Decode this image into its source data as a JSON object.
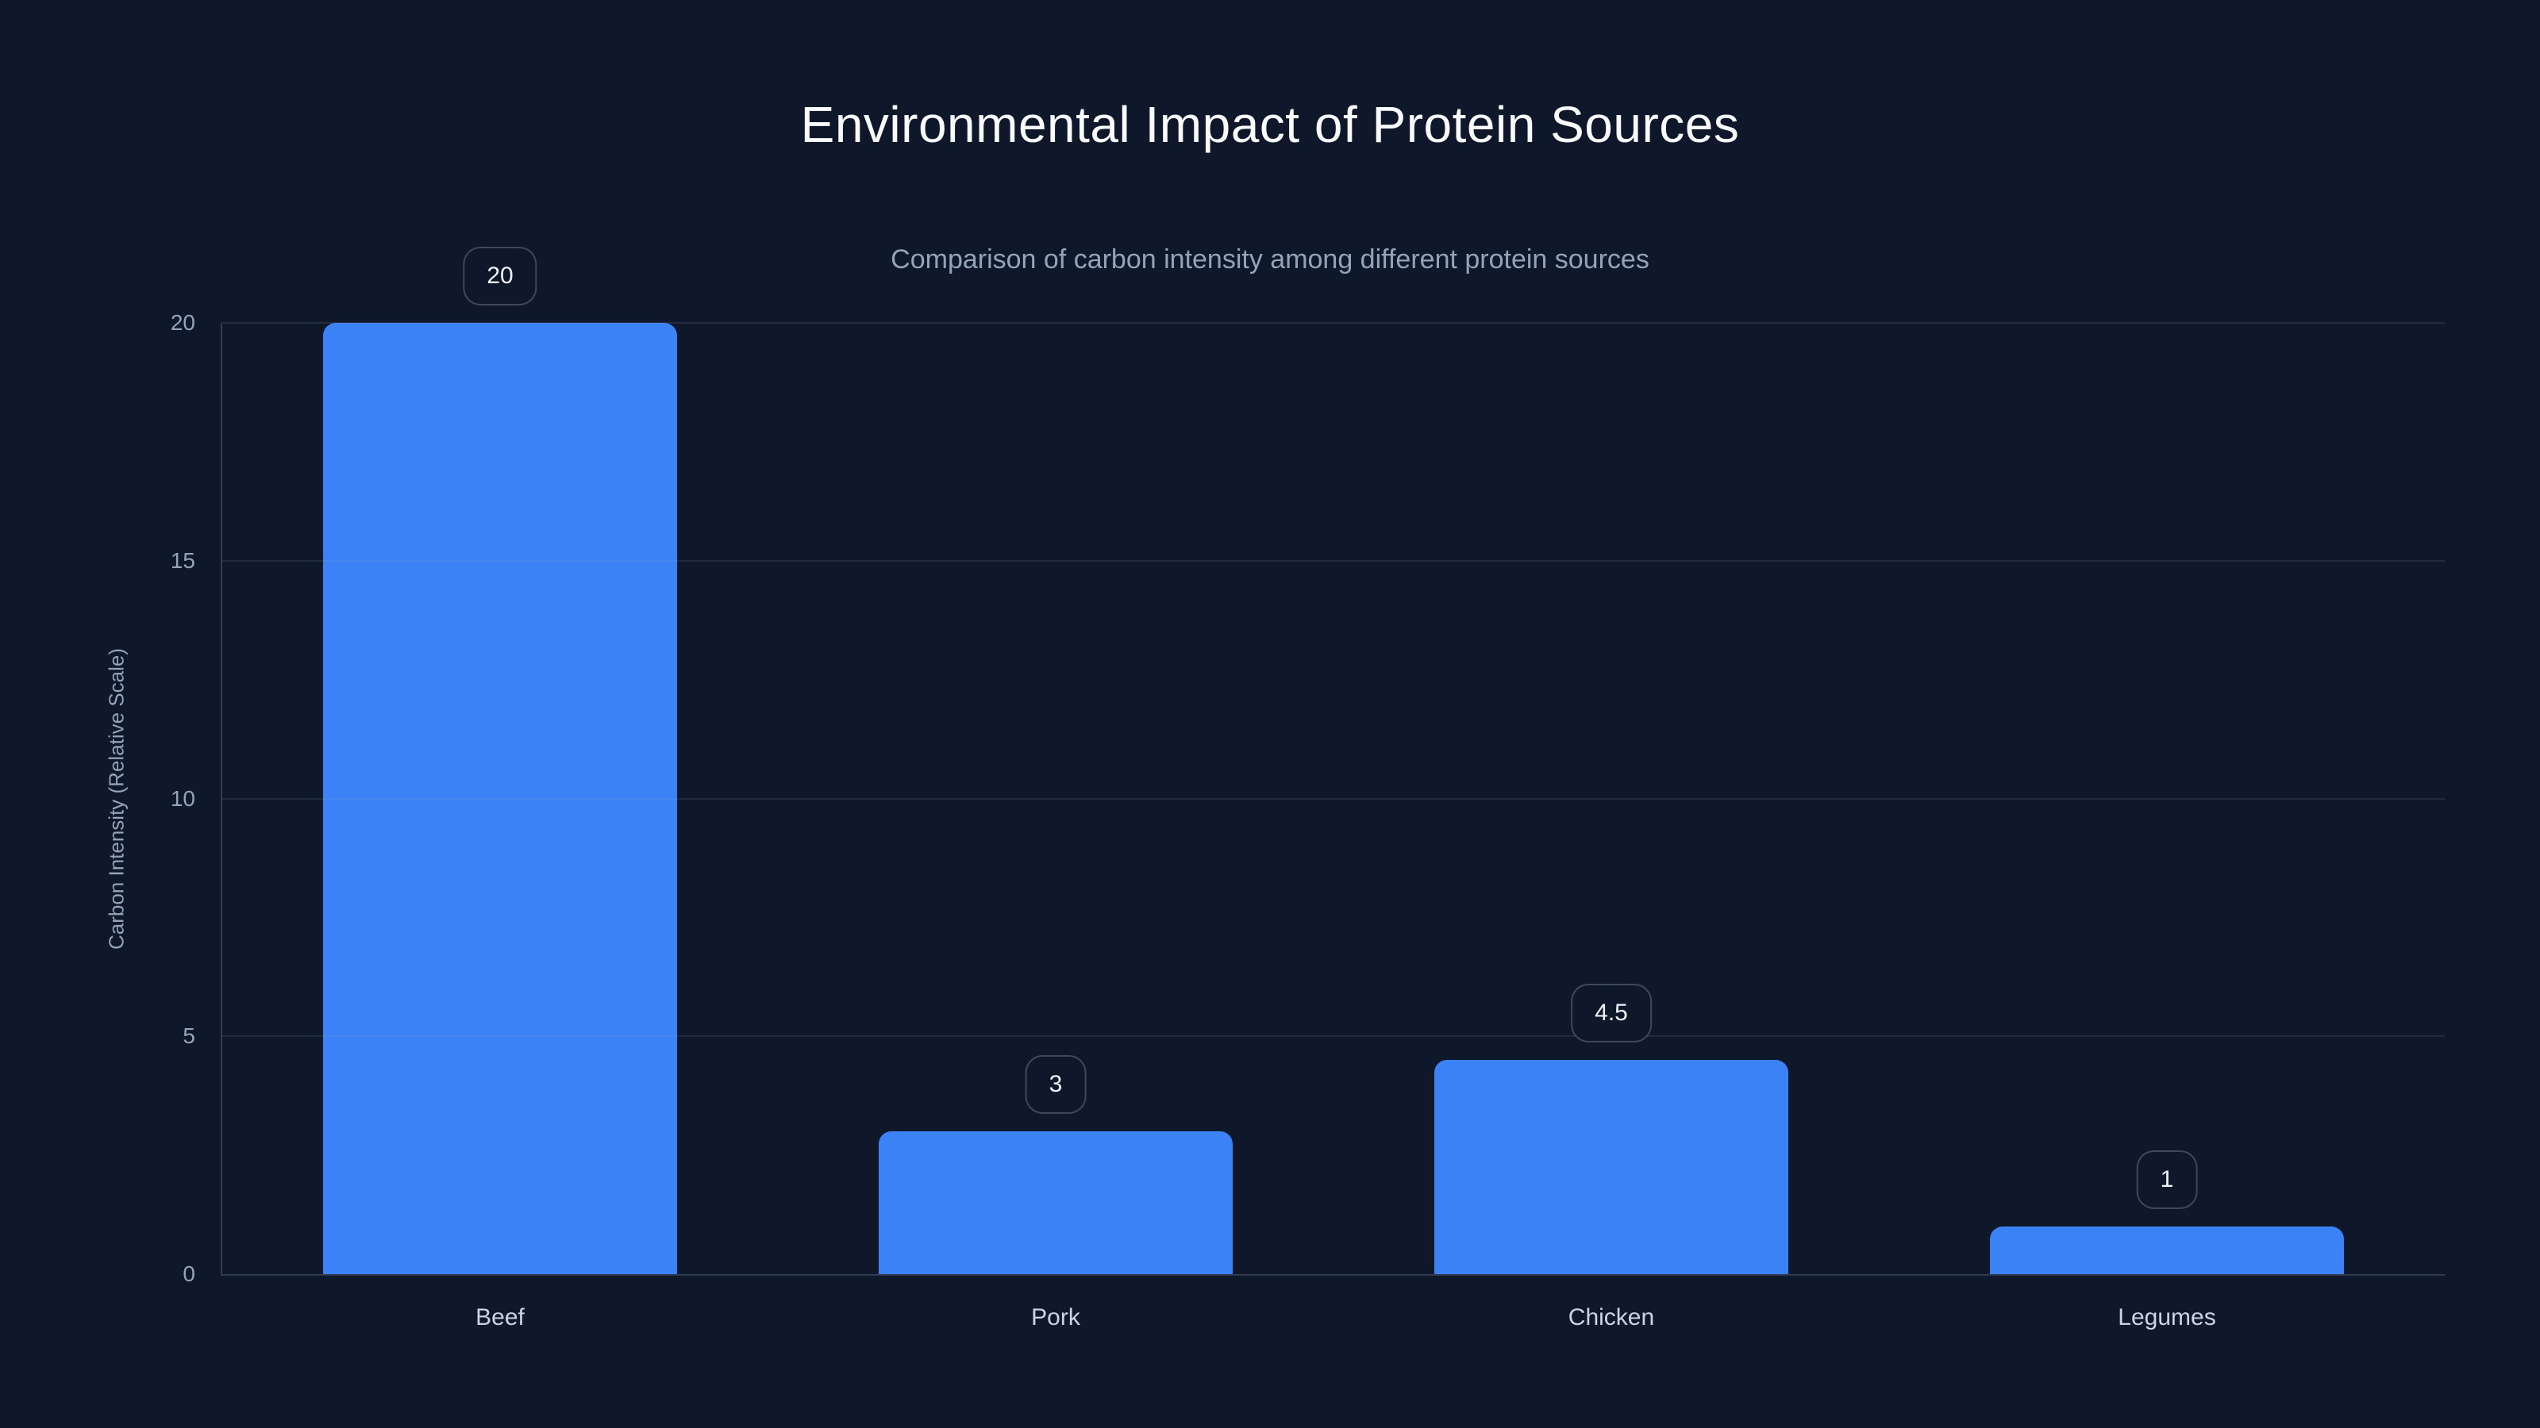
{
  "title": "Environmental Impact of Protein Sources",
  "subtitle": "Comparison of carbon intensity among different protein sources",
  "colors": {
    "background": "#0f172a",
    "bar": "#3b82f6",
    "title_text": "#f8fafc",
    "subtitle_text": "#94a3b8",
    "tick_text": "#94a3b8",
    "category_text": "#cbd5e1",
    "gridline": "rgba(148,163,184,0.14)",
    "badge_border": "rgba(148,163,184,0.35)"
  },
  "chart_data": {
    "type": "bar",
    "title": "Environmental Impact of Protein Sources",
    "subtitle": "Comparison of carbon intensity among different protein sources",
    "categories": [
      "Beef",
      "Pork",
      "Chicken",
      "Legumes"
    ],
    "values": [
      20,
      3,
      4.5,
      1
    ],
    "value_labels": [
      "20",
      "3",
      "4.5",
      "1"
    ],
    "xlabel": "",
    "ylabel": "Carbon Intensity (Relative Scale)",
    "ylim": [
      0,
      20
    ],
    "yticks": [
      0,
      5,
      10,
      15,
      20
    ],
    "ytick_labels": [
      "0",
      "5",
      "10",
      "15",
      "20"
    ],
    "grid": true,
    "legend": false,
    "bar_color": "#3b82f6",
    "background_color": "#0f172a"
  }
}
